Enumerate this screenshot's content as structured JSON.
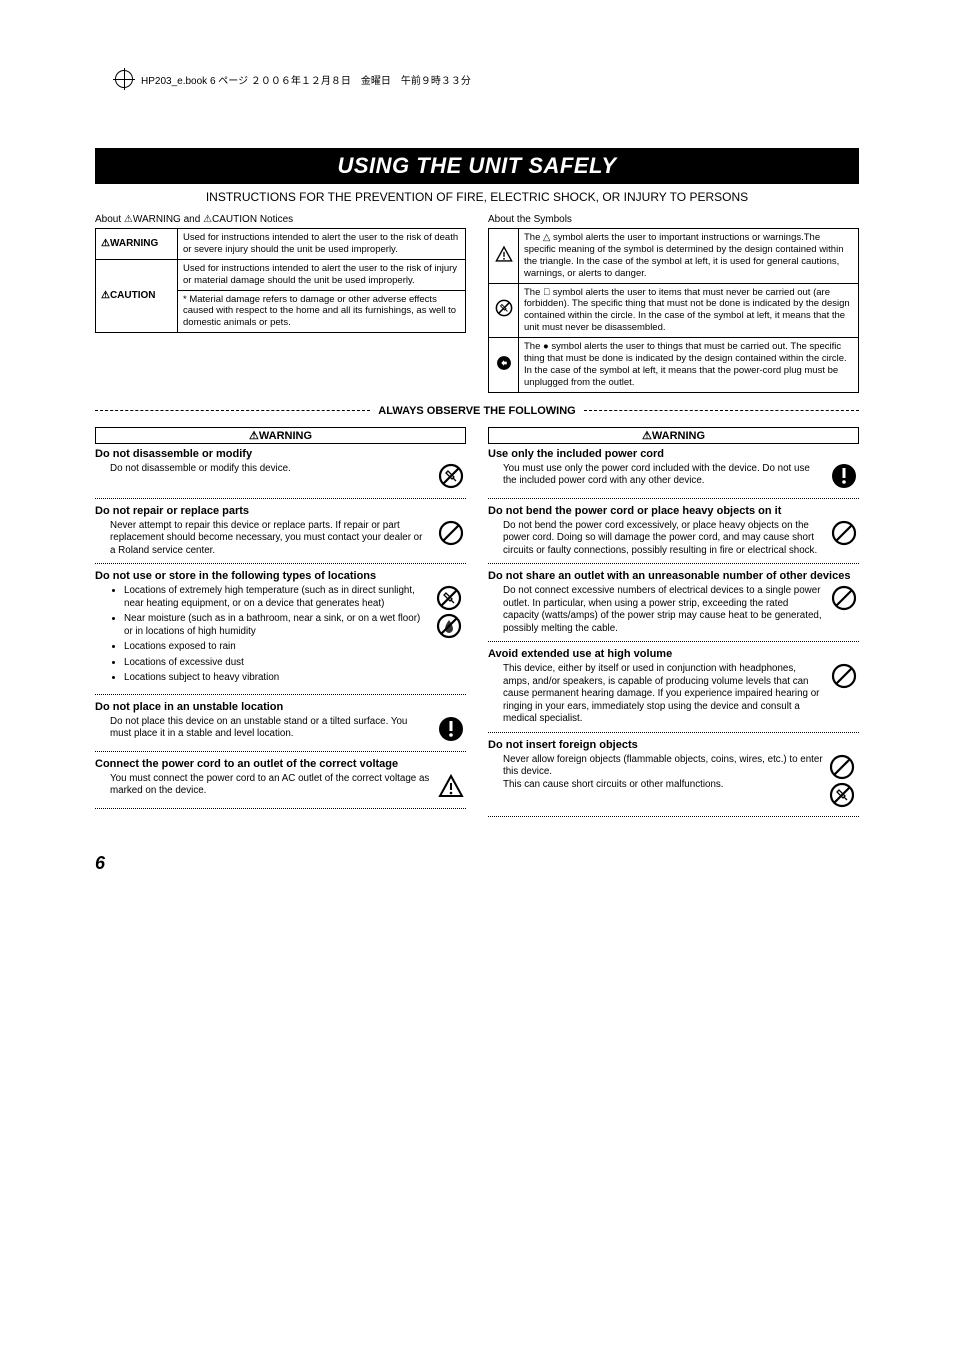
{
  "header_strip": "HP203_e.book  6 ページ  ２００６年１２月８日　金曜日　午前９時３３分",
  "title": "USING THE UNIT SAFELY",
  "subtitle": "INSTRUCTIONS FOR THE PREVENTION OF FIRE, ELECTRIC SHOCK, OR INJURY TO PERSONS",
  "notices_title": "About ⚠WARNING and ⚠CAUTION Notices",
  "symbols_title": "About the Symbols",
  "notices": [
    {
      "label": "⚠WARNING",
      "text": "Used for instructions intended to alert the user to the risk of death or severe injury should the unit be used improperly."
    },
    {
      "label": "⚠CAUTION",
      "text": "Used for instructions intended to alert the user to the risk of injury or material damage should the unit be used improperly.",
      "note": "* Material damage refers to damage or other adverse effects caused with respect to the home and all its furnishings, as well to domestic animals or pets."
    }
  ],
  "symbols": [
    {
      "icon": "triangle",
      "text": "The △ symbol alerts the user to important instructions or warnings.The specific meaning of the symbol is determined by the design contained within the triangle. In the case of the symbol at left, it is used for general cautions, warnings, or alerts to danger."
    },
    {
      "icon": "prohibit",
      "text": "The ⃠ symbol alerts the user to items that must never be carried out (are forbidden). The specific thing that must not be done is indicated by the design contained within the circle. In the case of the symbol at left, it means that the unit must never be disassembled."
    },
    {
      "icon": "solid",
      "text": "The ● symbol alerts the user to things that must be carried out. The specific thing that must be done is indicated by the design contained within the circle. In the case of the symbol at left, it means that the power-cord plug must be unplugged from the outlet."
    }
  ],
  "divider": "ALWAYS OBSERVE THE FOLLOWING",
  "warning_label": "⚠WARNING",
  "left": [
    {
      "title": "Do not disassemble or modify",
      "text": "Do not disassemble or modify this device.",
      "icon": "prohibit-tool"
    },
    {
      "title": "Do not repair or replace parts",
      "text": "Never attempt to repair this device or replace parts. If repair or part replacement should become necessary, you must contact your dealer or a Roland service center.",
      "icon": "prohibit"
    },
    {
      "title": "Do not use or store in the following types of locations",
      "list": [
        "Locations of extremely high temperature (such as in direct sunlight, near heating equipment, or on a device that generates heat)",
        "Near moisture (such as in a bathroom, near a sink, or on a wet floor) or in locations of high humidity",
        "Locations exposed to rain",
        "Locations of excessive dust",
        "Locations subject to heavy vibration"
      ],
      "icon": "prohibit-stack"
    },
    {
      "title": "Do not place in an unstable location",
      "text": "Do not place this device on an unstable stand or a tilted surface. You must place it in a stable and level location.",
      "icon": "solid-excl"
    },
    {
      "title": "Connect the power cord to an outlet of the correct voltage",
      "text": "You must connect the power cord to an AC outlet of the correct voltage as marked on the device.",
      "icon": "triangle"
    }
  ],
  "right": [
    {
      "title": "Use only the included power cord",
      "text": "You must use only the power cord included with the device. Do not use the included power cord with any other device.",
      "icon": "solid-excl"
    },
    {
      "title": "Do not bend the power cord or place heavy objects on it",
      "text": "Do not bend the power cord excessively, or place heavy objects on the power cord. Doing so will damage the power cord, and may cause short circuits or faulty connections, possibly resulting in fire or electrical shock.",
      "icon": "prohibit"
    },
    {
      "title": "Do not share an outlet with an unreasonable number of other devices",
      "text": "Do not connect excessive numbers of electrical devices to a single power outlet. In particular, when using a power strip, exceeding the rated capacity (watts/amps) of the power strip may cause heat to be generated, possibly melting the cable.",
      "icon": "prohibit"
    },
    {
      "title": "Avoid extended use at high volume",
      "text": "This device, either by itself or used in conjunction with headphones, amps, and/or speakers, is capable of producing volume levels that can cause permanent hearing damage. If you experience impaired hearing or ringing in your ears, immediately stop using the device and consult a medical specialist.",
      "icon": "prohibit"
    },
    {
      "title": "Do not insert foreign objects",
      "text": "Never allow foreign objects (flammable objects, coins, wires, etc.) to enter this device.\nThis can cause short circuits or other malfunctions.",
      "icon": "prohibit-stack2"
    }
  ],
  "page_number": "6"
}
